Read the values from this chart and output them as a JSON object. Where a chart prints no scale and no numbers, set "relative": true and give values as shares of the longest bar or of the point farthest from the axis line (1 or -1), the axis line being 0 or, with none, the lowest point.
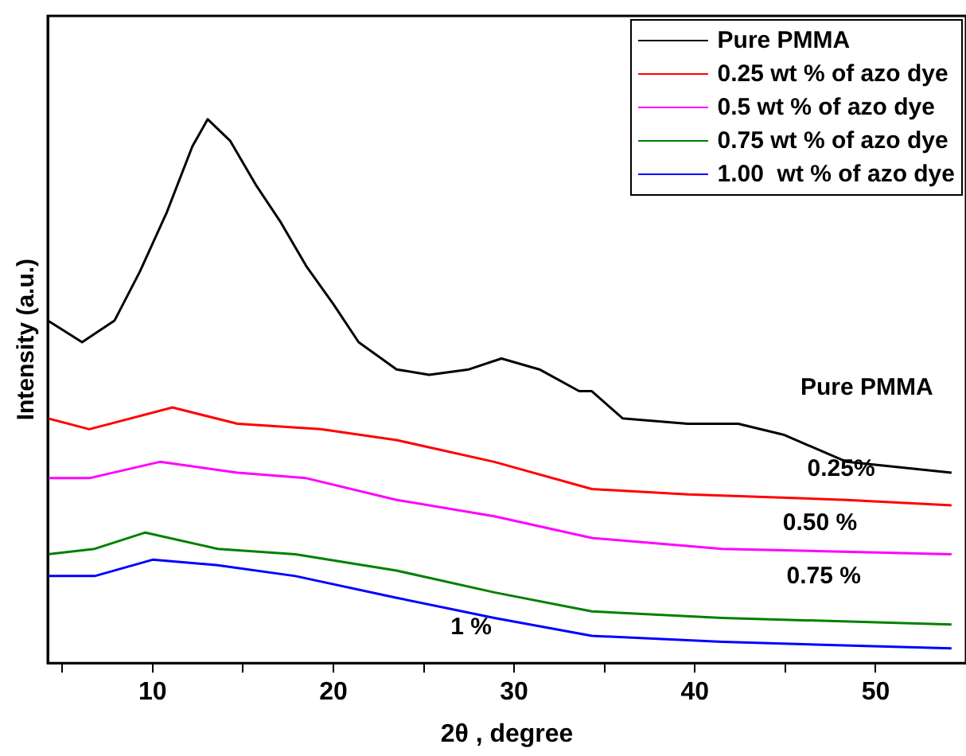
{
  "chart_data": {
    "type": "line",
    "xlabel": "2θ , degree",
    "ylabel": "Intensity (a.u.)",
    "relative": true,
    "xlim": [
      4.2,
      55
    ],
    "xticks": [
      {
        "value": 5,
        "label": null
      },
      10,
      {
        "value": 15,
        "label": null
      },
      20,
      {
        "value": 25,
        "label": null
      },
      30,
      {
        "value": 35,
        "label": null
      },
      40,
      {
        "value": 45,
        "label": null
      },
      50
    ],
    "legend": "top right",
    "grid": false,
    "marker": "none",
    "line_style": "solid",
    "series": [
      {
        "name": "Pure PMMA",
        "color": "#000000",
        "x": [
          4.2,
          6.1,
          7.9,
          9.3,
          10.8,
          12.2,
          13.05,
          14.3,
          15.7,
          17.1,
          18.5,
          20,
          21.4,
          23.5,
          25.3,
          27.5,
          29.3,
          31.4,
          33.6,
          34.3,
          36,
          39.6,
          42.4,
          44.9,
          48.4,
          54.2
        ],
        "values": [
          0.63,
          0.59,
          0.63,
          0.72,
          0.83,
          0.95,
          1,
          0.96,
          0.88,
          0.81,
          0.73,
          0.66,
          0.59,
          0.54,
          0.53,
          0.54,
          0.56,
          0.54,
          0.5,
          0.5,
          0.45,
          0.44,
          0.44,
          0.42,
          0.37,
          0.35
        ]
      },
      {
        "name": "0.25 wt % of azo dye",
        "color": "#ff0000",
        "x": [
          4.2,
          6.5,
          11.1,
          14.7,
          19.3,
          23.5,
          28.9,
          34.3,
          39.6,
          48.4,
          54.2
        ],
        "values": [
          0.45,
          0.43,
          0.47,
          0.44,
          0.43,
          0.41,
          0.37,
          0.32,
          0.31,
          0.3,
          0.29
        ]
      },
      {
        "name": "0.5 wt % of azo dye",
        "color": "#ff00ff",
        "x": [
          4.2,
          6.5,
          10.4,
          14.7,
          18.5,
          23.5,
          28.9,
          34.3,
          41.5,
          54.2
        ],
        "values": [
          0.34,
          0.34,
          0.37,
          0.35,
          0.34,
          0.3,
          0.27,
          0.23,
          0.21,
          0.2
        ]
      },
      {
        "name": "0.75 wt % of azo dye",
        "color": "#008000",
        "x": [
          4.2,
          6.8,
          9.6,
          13.6,
          17.9,
          23.5,
          28.9,
          34.3,
          41.5,
          54.2
        ],
        "values": [
          0.2,
          0.21,
          0.24,
          0.21,
          0.2,
          0.17,
          0.13,
          0.095,
          0.083,
          0.071
        ]
      },
      {
        "name": "1.00  wt % of azo dye",
        "color": "#0000ff",
        "x": [
          4.2,
          6.8,
          10,
          13.6,
          17.9,
          23.5,
          28.9,
          34.3,
          41.5,
          54.2
        ],
        "values": [
          0.16,
          0.16,
          0.19,
          0.18,
          0.16,
          0.12,
          0.083,
          0.05,
          0.039,
          0.027
        ]
      }
    ],
    "annotations": [
      "Pure PMMA",
      "0.25%",
      "0.50 %",
      "0.75 %",
      "1 %"
    ]
  }
}
